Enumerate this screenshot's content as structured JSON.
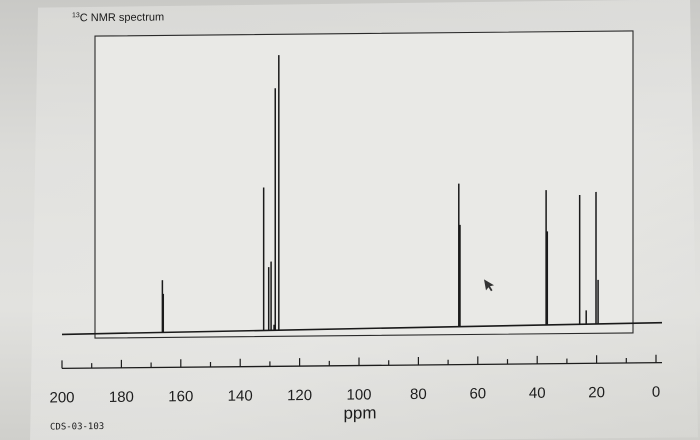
{
  "chart_data": {
    "type": "line",
    "title": "13C NMR spectrum",
    "title_sup": "13",
    "title_rest": "C NMR spectrum",
    "xlabel": "ppm",
    "ylabel": "",
    "sample_code": "CDS-03-103",
    "x_reversed": true,
    "xlim": [
      200,
      0
    ],
    "ylim": [
      0,
      100
    ],
    "x_ticks": [
      200,
      180,
      160,
      140,
      120,
      100,
      80,
      60,
      40,
      20,
      0
    ],
    "minor_tick_step": 10,
    "grid": false,
    "legend": "none",
    "series": [
      {
        "peaks": [
          {
            "ppm": 166.2,
            "height": 19
          },
          {
            "ppm": 165.9,
            "height": 14
          },
          {
            "ppm": 132.1,
            "height": 52
          },
          {
            "ppm": 130.4,
            "height": 23
          },
          {
            "ppm": 129.6,
            "height": 25
          },
          {
            "ppm": 128.6,
            "height": 2
          },
          {
            "ppm": 128.2,
            "height": 88
          },
          {
            "ppm": 127.0,
            "height": 100
          },
          {
            "ppm": 66.4,
            "height": 52
          },
          {
            "ppm": 66.0,
            "height": 37
          },
          {
            "ppm": 37.0,
            "height": 49
          },
          {
            "ppm": 36.6,
            "height": 34
          },
          {
            "ppm": 25.7,
            "height": 47
          },
          {
            "ppm": 23.5,
            "height": 5
          },
          {
            "ppm": 20.2,
            "height": 48
          },
          {
            "ppm": 19.5,
            "height": 16
          }
        ]
      }
    ],
    "colors": {
      "line": "#1a1a1a",
      "frame": "#2a2a2a",
      "plot_bg": "#e9e9e6"
    }
  }
}
